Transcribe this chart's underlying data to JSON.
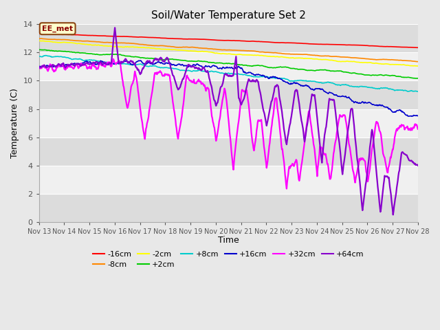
{
  "title": "Soil/Water Temperature Set 2",
  "xlabel": "Time",
  "ylabel": "Temperature (C)",
  "ylim": [
    0,
    14
  ],
  "xlim": [
    0,
    15
  ],
  "x_tick_labels": [
    "Nov 13",
    "Nov 14",
    "Nov 15",
    "Nov 16",
    "Nov 17",
    "Nov 18",
    "Nov 19",
    "Nov 20",
    "Nov 21",
    "Nov 22",
    "Nov 23",
    "Nov 24",
    "Nov 25",
    "Nov 26",
    "Nov 27",
    "Nov 28"
  ],
  "fig_bg": "#e8e8e8",
  "plot_bg": "#f0f0f0",
  "band_color": "#dcdcdc",
  "annotation_text": "EE_met",
  "annotation_bg": "#ffffcc",
  "annotation_border": "#8b4513",
  "series": [
    {
      "label": "-16cm",
      "color": "#ff0000"
    },
    {
      "label": "-8cm",
      "color": "#ff8800"
    },
    {
      "label": "-2cm",
      "color": "#ffff00"
    },
    {
      "label": "+2cm",
      "color": "#00cc00"
    },
    {
      "label": "+8cm",
      "color": "#00cccc"
    },
    {
      "label": "+16cm",
      "color": "#0000cc"
    },
    {
      "label": "+32cm",
      "color": "#ff00ff"
    },
    {
      "label": "+64cm",
      "color": "#8800cc"
    }
  ]
}
